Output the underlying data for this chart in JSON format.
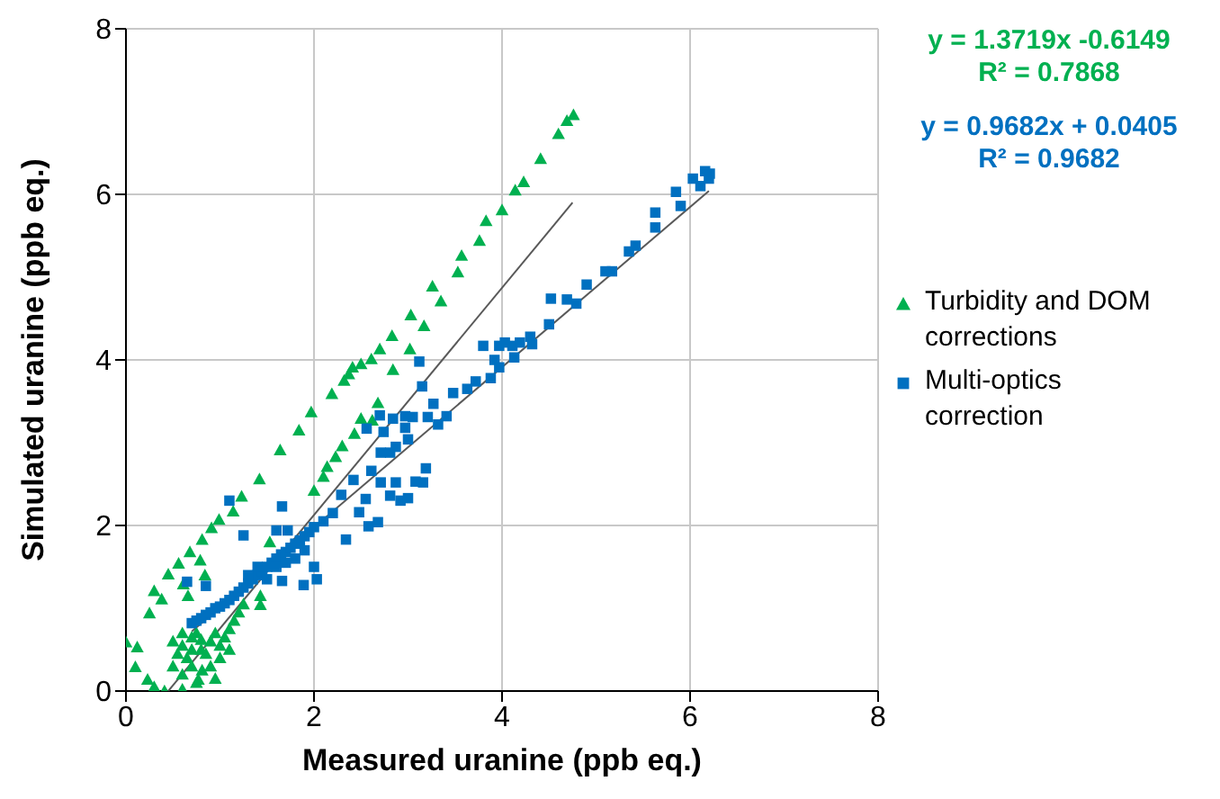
{
  "chart_data": {
    "type": "scatter",
    "xlabel": "Measured uranine (ppb eq.)",
    "ylabel": "Simulated uranine (ppb eq.)",
    "xlim": [
      0,
      8
    ],
    "ylim": [
      0,
      8
    ],
    "xticks": [
      0,
      2,
      4,
      6,
      8
    ],
    "yticks": [
      0,
      2,
      4,
      6,
      8
    ],
    "grid": true,
    "legend": "right",
    "annotations": [
      "y = 1.3719x -0.6149",
      "R² = 0.7868",
      "y = 0.9682x + 0.0405",
      "R² = 0.9682"
    ],
    "series": [
      {
        "name": "Turbidity and DOM corrections",
        "color": "#00b050",
        "marker": "triangle",
        "x": [
          4.76,
          4.69,
          4.6,
          4.41,
          4.23,
          4.14,
          4.0,
          3.83,
          3.76,
          3.57,
          3.53,
          3.26,
          3.35,
          3.03,
          3.17,
          2.83,
          3.02,
          2.7,
          2.61,
          2.5,
          2.41,
          2.84,
          2.37,
          2.32,
          2.19,
          1.97,
          2.68,
          2.62,
          1.84,
          2.5,
          2.43,
          1.64,
          2.3,
          2.23,
          1.42,
          2.14,
          2.1,
          2.0,
          1.23,
          1.14,
          0.99,
          0.91,
          0.81,
          1.53,
          0.68,
          0.56,
          0.45,
          0.79,
          0.84,
          0.61,
          0.3,
          0.38,
          0.66,
          0.25,
          1.43,
          1.43,
          0.0,
          0.12,
          0.1,
          0.23,
          0.41,
          0.77,
          1.0,
          0.81,
          0.5,
          0.6,
          0.7,
          0.8,
          0.9,
          1.0,
          1.1,
          0.55,
          0.65,
          0.75,
          0.85,
          0.95,
          1.05,
          0.6,
          0.7,
          0.8,
          1.1,
          1.15,
          1.2,
          1.25,
          0.7,
          0.9,
          0.6,
          0.75,
          0.95,
          0.5,
          0.3,
          0.6
        ],
        "values": [
          6.96,
          6.89,
          6.73,
          6.43,
          6.15,
          6.05,
          5.81,
          5.68,
          5.44,
          5.26,
          5.06,
          4.89,
          4.71,
          4.54,
          4.41,
          4.29,
          4.13,
          4.13,
          4.01,
          3.95,
          3.91,
          3.88,
          3.83,
          3.75,
          3.59,
          3.37,
          3.48,
          3.27,
          3.15,
          3.29,
          3.11,
          2.91,
          2.96,
          2.83,
          2.56,
          2.71,
          2.59,
          2.42,
          2.35,
          2.17,
          2.07,
          1.97,
          1.83,
          1.8,
          1.68,
          1.54,
          1.41,
          1.58,
          1.4,
          1.29,
          1.21,
          1.11,
          1.15,
          0.94,
          1.15,
          1.04,
          0.59,
          0.53,
          0.29,
          0.14,
          0.0,
          0.14,
          0.4,
          0.25,
          0.6,
          0.55,
          0.65,
          0.5,
          0.6,
          0.55,
          0.5,
          0.45,
          0.4,
          0.7,
          0.45,
          0.7,
          0.65,
          0.7,
          0.5,
          0.62,
          0.75,
          0.85,
          0.95,
          1.05,
          0.3,
          0.3,
          0.2,
          0.1,
          0.15,
          0.3,
          0.05,
          0.02
        ]
      },
      {
        "name": "Multi-optics correction",
        "color": "#0070c0",
        "marker": "square",
        "x": [
          0.7,
          0.75,
          0.8,
          0.85,
          0.9,
          0.95,
          1.0,
          1.05,
          1.1,
          1.15,
          1.2,
          1.25,
          1.3,
          1.35,
          1.4,
          1.45,
          1.5,
          1.55,
          1.6,
          1.65,
          1.7,
          1.75,
          1.8,
          1.85,
          1.9,
          1.95,
          2.0,
          2.1,
          2.2,
          1.3,
          1.4,
          1.5,
          1.6,
          1.7,
          1.8,
          1.9,
          0.65,
          0.85,
          1.25,
          1.1,
          1.66,
          1.6,
          1.72,
          1.89,
          2.03,
          2.0,
          1.66,
          2.34,
          2.58,
          2.68,
          2.48,
          2.29,
          2.42,
          2.55,
          2.81,
          2.92,
          3.0,
          3.16,
          3.19,
          2.87,
          2.71,
          2.61,
          2.81,
          2.71,
          2.87,
          3.0,
          2.74,
          2.56,
          2.84,
          2.97,
          3.05,
          2.7,
          2.97,
          3.08,
          3.12,
          3.15,
          3.27,
          3.21,
          3.32,
          3.41,
          3.48,
          3.63,
          3.72,
          3.8,
          3.88,
          3.92,
          3.97,
          3.97,
          4.03,
          4.11,
          4.19,
          4.3,
          4.32,
          4.13,
          4.5,
          4.52,
          4.69,
          4.79,
          4.9,
          5.1,
          5.17,
          5.35,
          5.42,
          5.63,
          5.63,
          5.85,
          5.9,
          6.03,
          6.11,
          6.16,
          6.21,
          6.2
        ],
        "values": [
          0.82,
          0.85,
          0.88,
          0.92,
          0.95,
          1.0,
          1.02,
          1.06,
          1.1,
          1.15,
          1.2,
          1.25,
          1.3,
          1.35,
          1.4,
          1.45,
          1.5,
          1.55,
          1.6,
          1.65,
          1.68,
          1.73,
          1.78,
          1.82,
          1.87,
          1.92,
          1.98,
          2.05,
          2.15,
          1.4,
          1.5,
          1.35,
          1.5,
          1.55,
          1.6,
          1.7,
          1.32,
          1.27,
          1.88,
          2.3,
          2.23,
          1.94,
          1.94,
          1.28,
          1.35,
          1.5,
          1.33,
          1.83,
          1.99,
          2.04,
          2.16,
          2.37,
          2.55,
          2.32,
          2.36,
          2.3,
          2.33,
          2.52,
          2.69,
          2.52,
          2.52,
          2.66,
          2.88,
          2.88,
          2.95,
          3.04,
          3.13,
          3.17,
          3.29,
          3.32,
          3.31,
          3.33,
          3.18,
          2.53,
          3.98,
          3.68,
          3.47,
          3.31,
          3.22,
          3.32,
          3.6,
          3.65,
          3.74,
          4.17,
          3.78,
          4.0,
          3.91,
          4.17,
          4.21,
          4.17,
          4.21,
          4.28,
          4.19,
          4.03,
          4.43,
          4.74,
          4.73,
          4.68,
          4.91,
          5.07,
          5.07,
          5.31,
          5.38,
          5.78,
          5.6,
          6.03,
          5.86,
          6.19,
          6.1,
          6.28,
          6.25,
          6.19
        ]
      },
      {
        "type": "line",
        "color": "#595959",
        "marker": "none",
        "x": [
          0.45,
          4.75
        ],
        "values": [
          0.0,
          5.9
        ]
      },
      {
        "type": "line",
        "color": "#595959",
        "marker": "none",
        "x": [
          0.7,
          6.2
        ],
        "values": [
          0.72,
          6.04
        ]
      }
    ]
  }
}
